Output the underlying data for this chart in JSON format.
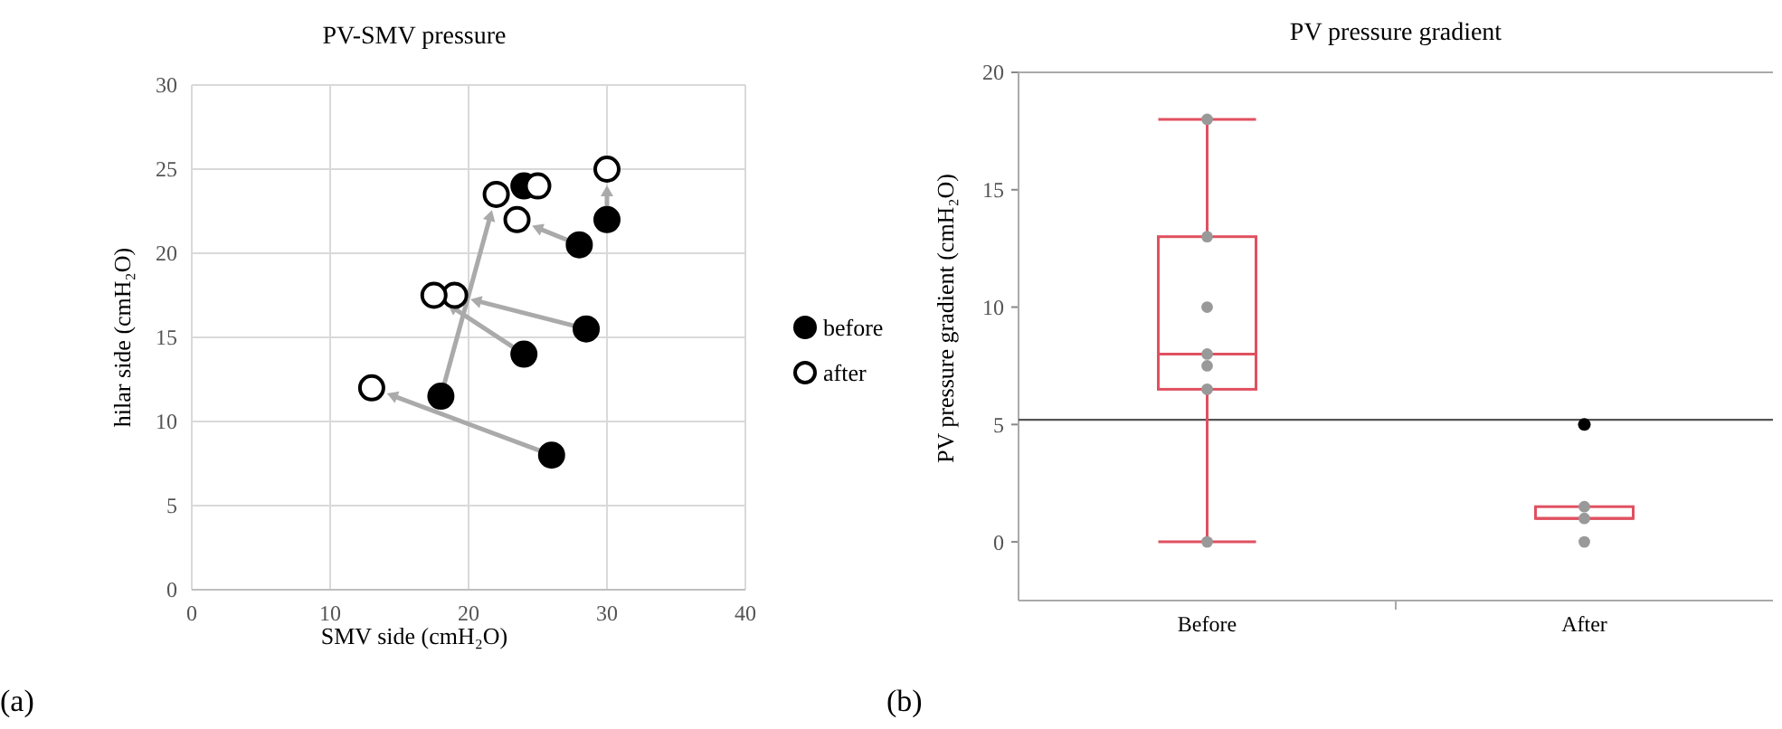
{
  "chart_data": [
    {
      "type": "scatter",
      "title": "PV-SMV pressure",
      "xlabel": "SMV side (cmH₂O)",
      "ylabel": "hilar side (cmH₂O)",
      "xlim": [
        0,
        40
      ],
      "ylim": [
        0,
        30
      ],
      "xticks": [
        0,
        10,
        20,
        30,
        40
      ],
      "yticks": [
        0,
        5,
        10,
        15,
        20,
        25,
        30
      ],
      "grid": true,
      "legend": "right",
      "marker": "circle",
      "annotations": [
        "(a)"
      ],
      "series": [
        {
          "name": "before",
          "color": "#000000",
          "x": [
            24,
            30,
            28,
            18,
            28.5,
            24,
            26
          ],
          "values": [
            24,
            22,
            20.5,
            11.5,
            15.5,
            14,
            8
          ]
        },
        {
          "name": "after",
          "color": "#ffffff",
          "x": [
            25,
            30,
            23.5,
            22,
            19,
            17.5,
            13
          ],
          "values": [
            24,
            25,
            22,
            23.5,
            17.5,
            17.5,
            12
          ]
        }
      ]
    },
    {
      "type": "box",
      "title": "PV pressure gradient",
      "ylabel": "PV pressure gradient (cmH₂O)",
      "categories": [
        "Before",
        "After"
      ],
      "ylim": [
        -2.5,
        20
      ],
      "yticks": [
        0,
        5,
        10,
        15,
        20
      ],
      "grid": false,
      "legend": false,
      "annotations": [
        "(b)"
      ],
      "ref_lines": [
        {
          "axis": "y",
          "value": 5.2,
          "color": "#555555"
        }
      ],
      "series": [
        {
          "type": "box",
          "color": "#e05060",
          "boxes": [
            {
              "low": 0,
              "q1": 6.5,
              "median": 8,
              "q3": 13,
              "high": 18
            },
            {
              "low": 1,
              "q1": 1,
              "median": 1,
              "q3": 1.5,
              "high": 1.5,
              "outliers": [
                5
              ]
            }
          ]
        },
        {
          "type": "scatter",
          "color": "#999999",
          "x": [
            "Before",
            "Before",
            "Before",
            "Before",
            "Before",
            "Before",
            "Before",
            "After",
            "After",
            "After"
          ],
          "values": [
            18,
            13,
            10,
            8,
            7.5,
            6.5,
            0,
            1.5,
            1,
            0
          ]
        }
      ]
    }
  ]
}
